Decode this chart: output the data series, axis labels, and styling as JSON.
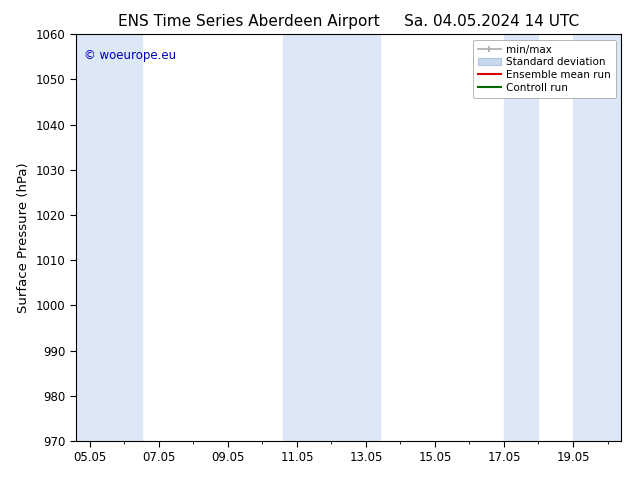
{
  "title": "ENS Time Series Aberdeen Airport",
  "title2": "Sa. 04.05.2024 14 UTC",
  "ylabel": "Surface Pressure (hPa)",
  "watermark": "© woeurope.eu",
  "watermark_color": "#0000bb",
  "ylim": [
    970,
    1060
  ],
  "yticks": [
    970,
    980,
    990,
    1000,
    1010,
    1020,
    1030,
    1040,
    1050,
    1060
  ],
  "x_start": 4.6,
  "x_end": 20.4,
  "xtick_labels": [
    "05.05",
    "07.05",
    "09.05",
    "11.05",
    "13.05",
    "15.05",
    "17.05",
    "19.05"
  ],
  "xtick_positions": [
    5,
    7,
    9,
    11,
    13,
    15,
    17,
    19
  ],
  "background_color": "#ffffff",
  "plot_bg_color": "#ffffff",
  "shaded_regions": [
    {
      "xmin": 4.6,
      "xmax": 5.5,
      "color": "#dce8f5"
    },
    {
      "xmin": 5.5,
      "xmax": 6.5,
      "color": "#dce8f5"
    },
    {
      "xmin": 10.6,
      "xmax": 11.4,
      "color": "#dce8f5"
    },
    {
      "xmin": 11.4,
      "xmax": 13.4,
      "color": "#dce8f5"
    },
    {
      "xmin": 17.0,
      "xmax": 18.0,
      "color": "#dce8f5"
    },
    {
      "xmin": 19.0,
      "xmax": 20.4,
      "color": "#dce8f5"
    }
  ],
  "title_fontsize": 11,
  "tick_fontsize": 8.5,
  "ylabel_fontsize": 9.5
}
